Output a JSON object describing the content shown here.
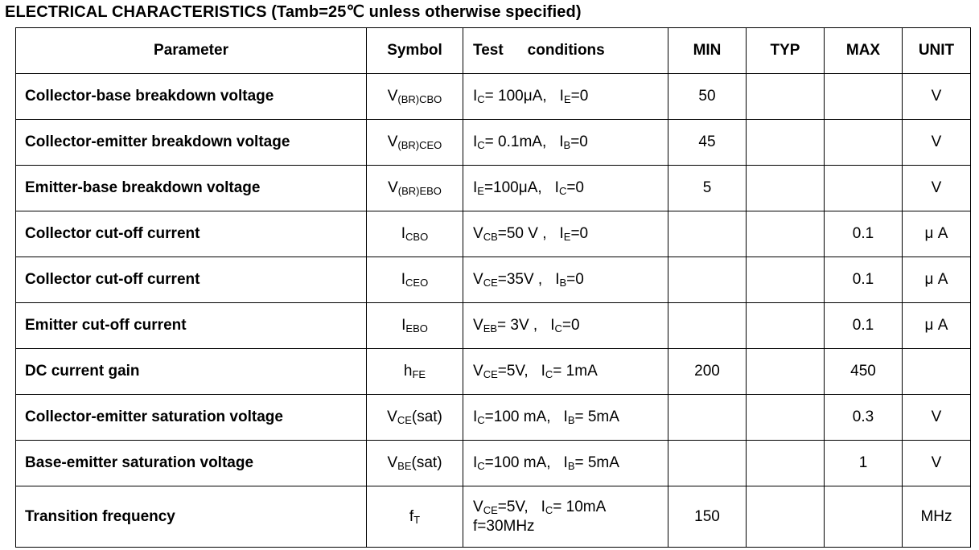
{
  "title": "ELECTRICAL CHARACTERISTICS (Tamb=25℃  unless otherwise specified)",
  "headers": {
    "parameter": "Parameter",
    "symbol": "Symbol",
    "test": "Test",
    "conditions": "conditions",
    "min": "MIN",
    "typ": "TYP",
    "max": "MAX",
    "unit": "UNIT"
  },
  "rows": [
    {
      "parameter": "Collector-base breakdown voltage",
      "sym_main": "V",
      "sym_sub": "(BR)CBO",
      "sym_tail": "",
      "c1": "I",
      "c1s": "C",
      "c1t": "= 100μA,",
      "c2": "I",
      "c2s": "E",
      "c2t": "=0",
      "min": "50",
      "typ": "",
      "max": "",
      "unit": "V"
    },
    {
      "parameter": "Collector-emitter breakdown voltage",
      "sym_main": "V",
      "sym_sub": "(BR)CEO",
      "sym_tail": "",
      "c1": "I",
      "c1s": "C",
      "c1t": "= 0.1mA,",
      "c2": "I",
      "c2s": "B",
      "c2t": "=0",
      "min": "45",
      "typ": "",
      "max": "",
      "unit": "V"
    },
    {
      "parameter": "Emitter-base breakdown voltage",
      "sym_main": "V",
      "sym_sub": "(BR)EBO",
      "sym_tail": "",
      "c1": "I",
      "c1s": "E",
      "c1t": "=100μA,",
      "c2": "I",
      "c2s": "C",
      "c2t": "=0",
      "min": "5",
      "typ": "",
      "max": "",
      "unit": "V"
    },
    {
      "parameter": "Collector cut-off current",
      "sym_main": "I",
      "sym_sub": "CBO",
      "sym_tail": "",
      "c1": "V",
      "c1s": "CB",
      "c1t": "=50 V ,",
      "c2": "I",
      "c2s": "E",
      "c2t": "=0",
      "min": "",
      "typ": "",
      "max": "0.1",
      "unit": "μ A"
    },
    {
      "parameter": "Collector cut-off current",
      "sym_main": "I",
      "sym_sub": "CEO",
      "sym_tail": "",
      "c1": "V",
      "c1s": "CE",
      "c1t": "=35V ,",
      "c2": "I",
      "c2s": "B",
      "c2t": "=0",
      "min": "",
      "typ": "",
      "max": "0.1",
      "unit": "μ A"
    },
    {
      "parameter": "Emitter cut-off current",
      "sym_main": "I",
      "sym_sub": "EBO",
      "sym_tail": "",
      "c1": "V",
      "c1s": "EB",
      "c1t": "= 3V ,",
      "c2": "I",
      "c2s": "C",
      "c2t": "=0",
      "min": "",
      "typ": "",
      "max": "0.1",
      "unit": "μ A"
    },
    {
      "parameter": "DC current gain",
      "sym_main": "h",
      "sym_sub": "FE",
      "sym_tail": "",
      "c1": "V",
      "c1s": "CE",
      "c1t": "=5V,",
      "c2": "I",
      "c2s": "C",
      "c2t": "= 1mA",
      "min": "200",
      "typ": "",
      "max": "450",
      "unit": ""
    },
    {
      "parameter": "Collector-emitter saturation voltage",
      "sym_main": "V",
      "sym_sub": "CE",
      "sym_tail": "(sat)",
      "c1": "I",
      "c1s": "C",
      "c1t": "=100 mA,",
      "c2": "I",
      "c2s": "B",
      "c2t": "= 5mA",
      "min": "",
      "typ": "",
      "max": "0.3",
      "unit": "V"
    },
    {
      "parameter": "Base-emitter saturation voltage",
      "sym_main": "V",
      "sym_sub": "BE",
      "sym_tail": "(sat)",
      "c1": "I",
      "c1s": "C",
      "c1t": "=100 mA,",
      "c2": "I",
      "c2s": "B",
      "c2t": "= 5mA",
      "min": "",
      "typ": "",
      "max": "1",
      "unit": "V"
    },
    {
      "parameter": "Transition frequency",
      "sym_main": "f",
      "sym_sub": "T",
      "sym_tail": "",
      "c1": "V",
      "c1s": "CE",
      "c1t": "=5V,",
      "c2": "I",
      "c2s": "C",
      "c2t": "= 10mA",
      "c3": "f=30MHz",
      "min": "150",
      "typ": "",
      "max": "",
      "unit": "MHz"
    }
  ]
}
